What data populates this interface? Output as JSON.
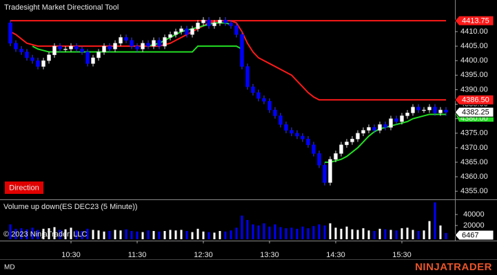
{
  "chart_data": {
    "type": "candlestick",
    "title": "Tradesight Market Directional Tool",
    "button": "Direction",
    "copyright": "© 2023 NinjaTrader, LLC",
    "status": "MD",
    "logo": "NINJATRADER",
    "up_color": "#ffffff",
    "down_color": "#0000ff",
    "categories": [
      null,
      null,
      null,
      null,
      null,
      null,
      null,
      null,
      null,
      null,
      null,
      "10:30",
      null,
      null,
      null,
      null,
      null,
      null,
      null,
      null,
      null,
      null,
      null,
      "11:30",
      null,
      null,
      null,
      null,
      null,
      null,
      null,
      null,
      null,
      null,
      null,
      "12:30",
      null,
      null,
      null,
      null,
      null,
      null,
      null,
      null,
      null,
      null,
      null,
      "13:30",
      null,
      null,
      null,
      null,
      null,
      null,
      null,
      null,
      null,
      null,
      null,
      "14:30",
      null,
      null,
      null,
      null,
      null,
      null,
      null,
      null,
      null,
      null,
      null,
      "15:30",
      null,
      null,
      null,
      null,
      null,
      null,
      null,
      null
    ],
    "open": [
      4413,
      4406,
      4404,
      4403,
      4401,
      4400,
      4398,
      4400,
      4402,
      4405,
      4404,
      4404,
      4405,
      4404,
      4403,
      4399,
      4401,
      4403,
      4405,
      4404,
      4406,
      4408,
      4407,
      4405,
      4404,
      4406,
      4405,
      4407,
      4405,
      4408,
      4409,
      4410,
      4411,
      4409,
      4411,
      4413,
      4414,
      4412,
      4413,
      4414,
      4413,
      4412,
      4409,
      4398,
      4391,
      4389,
      4387,
      4386,
      4383,
      4381,
      4378,
      4376,
      4375,
      4374,
      4373,
      4371,
      4368,
      4364,
      4358,
      4366,
      4368,
      4371,
      4372,
      4373,
      4375,
      4376,
      4377,
      4376,
      4378,
      4377,
      4380,
      4379,
      4381,
      4382,
      4384,
      4383,
      4383,
      4384,
      4382,
      4383
    ],
    "high": [
      4414,
      4407,
      4405,
      4404,
      4402,
      4401,
      4401,
      4403,
      4406,
      4406,
      4405,
      4406,
      4406,
      4405,
      4404,
      4402,
      4404,
      4406,
      4406,
      4407,
      4409,
      4409,
      4408,
      4406,
      4407,
      4407,
      4408,
      4408,
      4409,
      4410,
      4411,
      4412,
      4412,
      4412,
      4414,
      4415,
      4415,
      4414,
      4415,
      4415,
      4414,
      4413,
      4410,
      4399,
      4392,
      4390,
      4388,
      4387,
      4384,
      4382,
      4379,
      4377,
      4376,
      4375,
      4374,
      4372,
      4369,
      4365,
      4367,
      4369,
      4372,
      4373,
      4374,
      4376,
      4377,
      4378,
      4378,
      4379,
      4379,
      4381,
      4381,
      4382,
      4383,
      4385,
      4385,
      4384,
      4385,
      4385,
      4384,
      4384
    ],
    "low": [
      4405,
      4403,
      4402,
      4400,
      4399,
      4397,
      4397,
      4399,
      4401,
      4403,
      4403,
      4403,
      4403,
      4402,
      4398,
      4398,
      4400,
      4402,
      4403,
      4403,
      4405,
      4406,
      4404,
      4403,
      4403,
      4404,
      4404,
      4404,
      4404,
      4407,
      4408,
      4409,
      4408,
      4408,
      4410,
      4412,
      4411,
      4411,
      4412,
      4412,
      4411,
      4408,
      4397,
      4390,
      4388,
      4386,
      4385,
      4382,
      4380,
      4377,
      4375,
      4374,
      4373,
      4372,
      4370,
      4367,
      4363,
      4357,
      4357,
      4365,
      4367,
      4370,
      4371,
      4372,
      4374,
      4375,
      4375,
      4375,
      4376,
      4376,
      4378,
      4378,
      4380,
      4381,
      4382,
      4382,
      4382,
      4381,
      4381,
      4381
    ],
    "close": [
      4406,
      4404,
      4403,
      4401,
      4400,
      4398,
      4400,
      4402,
      4405,
      4404,
      4404,
      4405,
      4404,
      4403,
      4399,
      4401,
      4403,
      4405,
      4404,
      4406,
      4408,
      4407,
      4405,
      4404,
      4406,
      4405,
      4407,
      4405,
      4408,
      4409,
      4410,
      4411,
      4409,
      4411,
      4413,
      4414,
      4412,
      4413,
      4414,
      4413,
      4412,
      4409,
      4398,
      4391,
      4389,
      4387,
      4386,
      4383,
      4381,
      4378,
      4376,
      4375,
      4374,
      4373,
      4371,
      4368,
      4364,
      4358,
      4366,
      4368,
      4371,
      4372,
      4373,
      4375,
      4376,
      4377,
      4376,
      4378,
      4377,
      4380,
      4379,
      4381,
      4382,
      4384,
      4383,
      4383,
      4384,
      4382,
      4383,
      4382.25
    ],
    "lines": [
      {
        "color": "#ff1a1a",
        "values": [
          4410,
          4409,
          4407.5,
          4406,
          4405.5,
          4405,
          4405,
          4405,
          4405,
          4405,
          4405,
          4405,
          4405,
          4405,
          4405,
          4405,
          4405,
          4405,
          4405,
          4405,
          4405,
          4405,
          4405,
          4405,
          4405,
          4405,
          4405,
          4405,
          4405.5,
          4406,
          4407,
          4408,
          4409,
          4410,
          4411,
          4412,
          4413,
          4413.5,
          4413.75,
          4413.75,
          4413.75,
          4413,
          4410,
          4406,
          4403,
          4401,
          4400,
          4399,
          4398,
          4397,
          4396,
          4395,
          4393,
          4391,
          4389,
          4387.5,
          4386.5,
          4386.5,
          4386.5,
          4386.5,
          4386.5,
          4386.5,
          4386.5,
          4386.5,
          4386.5,
          4386.5,
          4386.5,
          4386.5,
          4386.5,
          4386.5,
          4386.5,
          4386.5,
          4386.5,
          4386.5,
          4386.5,
          4386.5,
          4386.5,
          4386.5,
          4386.5,
          4386.5
        ]
      },
      {
        "color": "#22e022",
        "values": [
          null,
          null,
          null,
          null,
          null,
          null,
          null,
          null,
          null,
          null,
          null,
          null,
          null,
          null,
          null,
          null,
          null,
          null,
          null,
          null,
          null,
          null,
          null,
          null,
          null,
          4405,
          4405.5,
          4406,
          4407,
          4408,
          4409,
          4410,
          4410.5,
          4411,
          4411.5,
          4412,
          4412.5,
          4413,
          4413,
          4413,
          4412.5,
          null,
          null,
          null,
          null,
          null,
          null,
          null,
          null,
          null,
          null,
          null,
          null,
          null,
          null,
          null,
          null,
          null,
          null,
          null,
          null,
          null,
          null,
          null,
          null,
          null,
          null,
          null,
          null,
          null,
          null,
          null,
          null,
          null,
          null,
          null,
          null,
          null,
          null,
          null
        ]
      },
      {
        "color": "#22e022",
        "values": [
          null,
          null,
          null,
          null,
          4405,
          4404,
          4403.5,
          4403,
          4403,
          4403,
          4403,
          4403,
          4403,
          4403,
          4403,
          4403,
          4403,
          4403,
          4403,
          4403,
          4403,
          4403,
          4403,
          4403,
          4403,
          4403,
          4403,
          4403,
          4403,
          4403,
          4403,
          4403,
          4403,
          4403,
          4405,
          4405,
          4405,
          4405,
          4405,
          4405,
          4405,
          4405,
          4404,
          null,
          null,
          null,
          null,
          null,
          null,
          null,
          null,
          null,
          null,
          null,
          null,
          null,
          null,
          4365,
          4365,
          4365.5,
          4366,
          4367,
          4368.5,
          4370,
          4372,
          4374,
          4375.5,
          4376.5,
          4377,
          4377.5,
          4378,
          4378.5,
          4379,
          4380,
          4380.5,
          4381,
          4381.5,
          4381.5,
          4381.5,
          4381.5
        ]
      }
    ],
    "levels": [
      {
        "value": 4413.75,
        "label": "4413.75",
        "color": "#ff1a1a",
        "line": true
      },
      {
        "value": 4386.5,
        "label": "4386.50",
        "color": "#ff1a1a",
        "line": false
      }
    ],
    "ylim": [
      4352.2,
      4420.9
    ],
    "yticks": [
      {
        "value": 4355,
        "label": "4355.00"
      },
      {
        "value": 4360,
        "label": "4360.00"
      },
      {
        "value": 4365,
        "label": "4365.00"
      },
      {
        "value": 4370,
        "label": "4370.00"
      },
      {
        "value": 4375,
        "label": "4375.00"
      },
      {
        "value": 4380,
        "label": "4380.00"
      },
      {
        "value": 4385,
        "label": "4385.00"
      },
      {
        "value": 4390,
        "label": "4390.00"
      },
      {
        "value": 4395,
        "label": "4395.00"
      },
      {
        "value": 4400,
        "label": "4400.00"
      },
      {
        "value": 4405,
        "label": "4405.00"
      },
      {
        "value": 4410,
        "label": "4410.00"
      }
    ],
    "volume": {
      "title": "Volume up down(ES DEC23 (5 Minute))",
      "values": [
        22000,
        14000,
        15000,
        13000,
        16000,
        12000,
        14000,
        15000,
        17000,
        12000,
        13000,
        16000,
        11000,
        10000,
        14000,
        12000,
        11000,
        9000,
        10000,
        12000,
        11000,
        13000,
        10000,
        9000,
        8000,
        11000,
        10000,
        9000,
        10000,
        12000,
        11000,
        12000,
        10000,
        8000,
        14000,
        9000,
        8000,
        7000,
        10000,
        9000,
        11000,
        16000,
        38000,
        30000,
        22000,
        20000,
        24000,
        18000,
        22000,
        17000,
        15000,
        16000,
        14000,
        18000,
        15000,
        19000,
        22000,
        20000,
        24000,
        16000,
        14000,
        18000,
        13000,
        12000,
        15000,
        11000,
        10000,
        14000,
        13000,
        12000,
        11000,
        15000,
        16000,
        12000,
        10000,
        11000,
        28000,
        62000,
        20000,
        6467
      ],
      "ylim": [
        0,
        65000
      ],
      "yticks": [
        20000,
        40000
      ]
    }
  }
}
